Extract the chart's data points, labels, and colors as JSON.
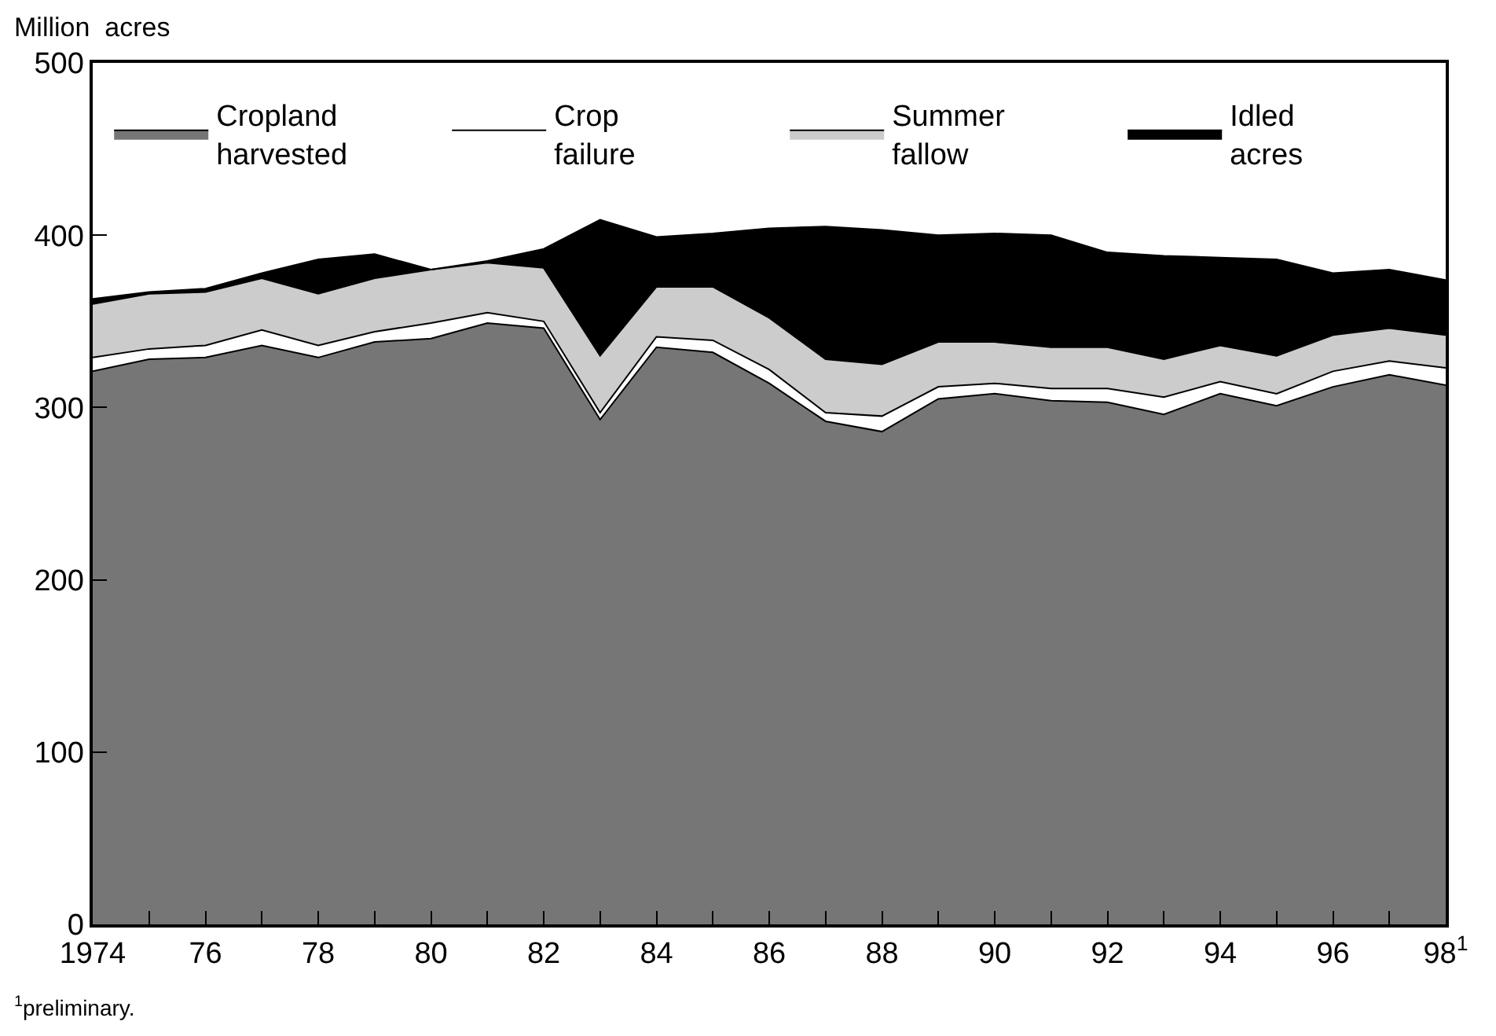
{
  "chart_data": {
    "type": "area",
    "stacked": true,
    "ylabel": "Million  acres",
    "x": [
      1974,
      1975,
      1976,
      1977,
      1978,
      1979,
      1980,
      1981,
      1982,
      1983,
      1984,
      1985,
      1986,
      1987,
      1988,
      1989,
      1990,
      1991,
      1992,
      1993,
      1994,
      1995,
      1996,
      1997,
      1998
    ],
    "series": [
      {
        "name": "Cropland\nharvested",
        "color": "#767676",
        "values": [
          321,
          328,
          329,
          336,
          329,
          338,
          340,
          349,
          346,
          293,
          335,
          332,
          314,
          292,
          286,
          305,
          308,
          304,
          303,
          296,
          308,
          301,
          312,
          319,
          313
        ]
      },
      {
        "name": "Crop\nfailure",
        "color": "#ffffff",
        "values": [
          8,
          6,
          7,
          9,
          7,
          6,
          9,
          6,
          4,
          4,
          6,
          7,
          8,
          5,
          9,
          7,
          6,
          7,
          8,
          10,
          7,
          7,
          9,
          8,
          10
        ]
      },
      {
        "name": "Summer\nfallow",
        "color": "#cccccc",
        "values": [
          31,
          32,
          31,
          30,
          30,
          31,
          31,
          29,
          31,
          33,
          29,
          31,
          30,
          31,
          30,
          26,
          24,
          24,
          24,
          22,
          21,
          22,
          21,
          19,
          19
        ]
      },
      {
        "name": "Idled\nacres",
        "color": "#000000",
        "values": [
          3,
          1,
          2,
          3,
          20,
          14,
          0,
          1,
          11,
          79,
          29,
          31,
          52,
          77,
          78,
          62,
          63,
          65,
          55,
          60,
          51,
          56,
          36,
          34,
          32
        ]
      }
    ],
    "xlim": [
      1974,
      1998
    ],
    "xticks": [
      1974,
      {
        "value": 1975,
        "label": null
      },
      {
        "value": 1976,
        "label": "76"
      },
      {
        "value": 1977,
        "label": null
      },
      {
        "value": 1978,
        "label": "78"
      },
      {
        "value": 1979,
        "label": null
      },
      {
        "value": 1980,
        "label": "80"
      },
      {
        "value": 1981,
        "label": null
      },
      {
        "value": 1982,
        "label": "82"
      },
      {
        "value": 1983,
        "label": null
      },
      {
        "value": 1984,
        "label": "84"
      },
      {
        "value": 1985,
        "label": null
      },
      {
        "value": 1986,
        "label": "86"
      },
      {
        "value": 1987,
        "label": null
      },
      {
        "value": 1988,
        "label": "88"
      },
      {
        "value": 1989,
        "label": null
      },
      {
        "value": 1990,
        "label": "90"
      },
      {
        "value": 1991,
        "label": null
      },
      {
        "value": 1992,
        "label": "92"
      },
      {
        "value": 1993,
        "label": null
      },
      {
        "value": 1994,
        "label": "94"
      },
      {
        "value": 1995,
        "label": null
      },
      {
        "value": 1996,
        "label": "96"
      },
      {
        "value": 1997,
        "label": null
      },
      {
        "value": 1998,
        "label": "98$^{1}$"
      }
    ],
    "ylim": [
      0,
      500
    ],
    "yticks": [
      0,
      100,
      200,
      300,
      400,
      500
    ],
    "legend": "top",
    "annotations": [
      "$^{1}$preliminary."
    ]
  }
}
